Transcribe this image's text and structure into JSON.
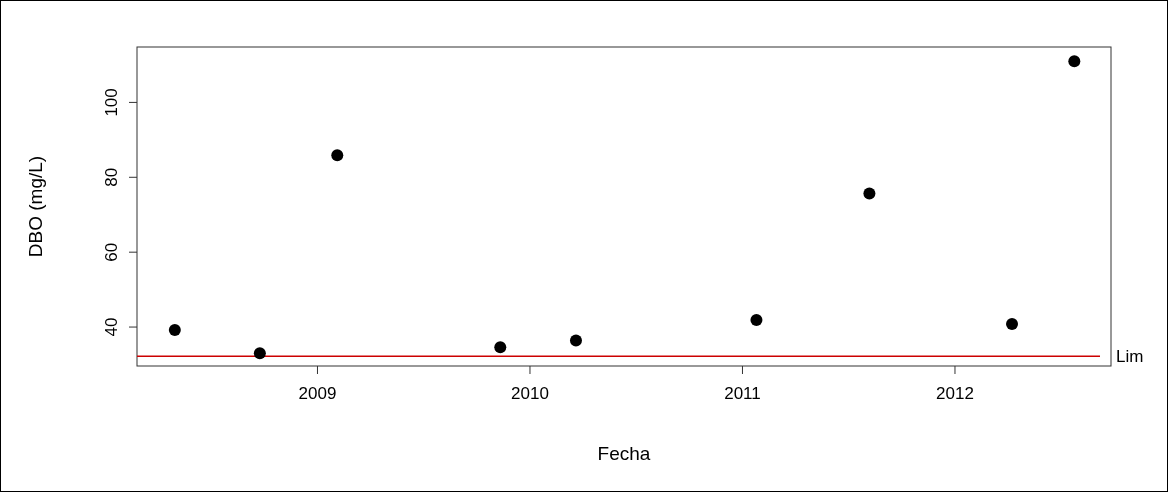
{
  "chart_data": {
    "type": "scatter",
    "xlabel": "Fecha",
    "ylabel": "DBO (mg/L)",
    "x": [
      "2008-05-01",
      "2008-09-24",
      "2009-02-04",
      "2009-11-11",
      "2010-03-21",
      "2011-01-25",
      "2011-08-07",
      "2012-04-08",
      "2012-07-24"
    ],
    "values": [
      39.2,
      33.0,
      85.9,
      34.6,
      36.4,
      41.9,
      75.7,
      40.8,
      111.0
    ],
    "color": "#000000",
    "marker": "circle",
    "xlim": [
      "2008-02-26",
      "2012-09-25"
    ],
    "xticks": [
      "2009",
      "2010",
      "2011",
      "2012"
    ],
    "ylim": [
      29.6,
      114.8
    ],
    "yticks": [
      40,
      60,
      80,
      100
    ],
    "ref_lines": [
      {
        "axis": "y",
        "value": 32.2,
        "label": "Lim",
        "color": "#cc0000"
      }
    ],
    "grid": false
  }
}
